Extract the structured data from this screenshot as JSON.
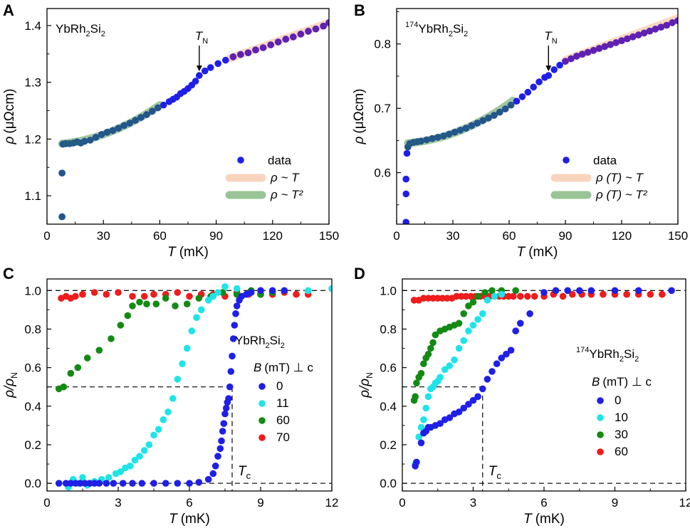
{
  "chart_data": [
    {
      "panel": "A",
      "type": "scatter",
      "sample": {
        "main": "YbRh",
        "sub1": "2",
        "mid": "Si",
        "sub2": "2"
      },
      "xlabel": {
        "sym": "T",
        "unit": "(mK)"
      },
      "ylabel": {
        "sym": "ρ",
        "unit": "(μΩcm)"
      },
      "xlim": [
        0,
        150
      ],
      "ylim": [
        1.05,
        1.43
      ],
      "xticks": [
        "0",
        "30",
        "60",
        "90",
        "120",
        "150"
      ],
      "yticks": [
        "1.1",
        "1.2",
        "1.3",
        "1.4"
      ],
      "annotation": {
        "sym": "T",
        "sub": "N",
        "x": 81,
        "y": 1.312
      },
      "series": [
        {
          "name": "data",
          "color": "#1f1fe6",
          "x": [
            8,
            8,
            8.5,
            10,
            12,
            14,
            16,
            18,
            20,
            23,
            26,
            29,
            32,
            35,
            38,
            41,
            44,
            47,
            50,
            53,
            56,
            59,
            62,
            65,
            67,
            69,
            71,
            73,
            75,
            77,
            79,
            81,
            84,
            87,
            91,
            95,
            99,
            103,
            107,
            111,
            115,
            119,
            123,
            127,
            131,
            135,
            139,
            143,
            147,
            150
          ],
          "y": [
            1.063,
            1.14,
            1.191,
            1.192,
            1.192,
            1.193,
            1.195,
            1.193,
            1.196,
            1.198,
            1.203,
            1.208,
            1.212,
            1.215,
            1.219,
            1.224,
            1.228,
            1.233,
            1.238,
            1.243,
            1.249,
            1.255,
            1.26,
            1.266,
            1.27,
            1.274,
            1.28,
            1.284,
            1.289,
            1.295,
            1.302,
            1.312,
            1.32,
            1.326,
            1.333,
            1.339,
            1.345,
            1.349,
            1.352,
            1.357,
            1.361,
            1.366,
            1.371,
            1.376,
            1.38,
            1.385,
            1.39,
            1.394,
            1.399,
            1.405
          ]
        },
        {
          "name": "ρ ~ T",
          "color": "#f9d4bd",
          "fit": "linear",
          "x": [
            97,
            150
          ],
          "y": [
            1.342,
            1.405
          ]
        },
        {
          "name": "ρ ~ T²",
          "color": "#98c496",
          "fit": "quadratic",
          "x": [
            8,
            60
          ],
          "y": [
            1.192,
            1.26
          ]
        }
      ],
      "legend": [
        "data",
        "ρ ~ T",
        "ρ ~ T²"
      ]
    },
    {
      "panel": "B",
      "type": "scatter",
      "sample": {
        "iso": "174",
        "main": "YbRh",
        "sub1": "2",
        "mid": "Si",
        "sub2": "2"
      },
      "xlabel": {
        "sym": "T",
        "unit": "(mK)"
      },
      "ylabel": {
        "sym": "ρ",
        "unit": "(μΩcm)"
      },
      "xlim": [
        0,
        150
      ],
      "ylim": [
        0.52,
        0.855
      ],
      "xticks": [
        "0",
        "30",
        "60",
        "90",
        "120",
        "150"
      ],
      "yticks": [
        "0.6",
        "0.7",
        "0.8"
      ],
      "annotation": {
        "sym": "T",
        "sub": "N",
        "x": 81,
        "y": 0.751
      },
      "series": [
        {
          "name": "data",
          "color": "#1f1fe6",
          "x": [
            5,
            5,
            5,
            5.5,
            6,
            7,
            9,
            11,
            13,
            16,
            19,
            22,
            25,
            28,
            31,
            34,
            37,
            40,
            43,
            46,
            49,
            52,
            55,
            58,
            61,
            64,
            67,
            70,
            73,
            76,
            79,
            81,
            84,
            87,
            90,
            93,
            96,
            99,
            102,
            105,
            108,
            111,
            114,
            117,
            120,
            123,
            126,
            129,
            132,
            135,
            138,
            141,
            144,
            147,
            150
          ],
          "y": [
            0.523,
            0.567,
            0.59,
            0.63,
            0.64,
            0.645,
            0.647,
            0.648,
            0.649,
            0.651,
            0.653,
            0.655,
            0.657,
            0.66,
            0.663,
            0.666,
            0.669,
            0.673,
            0.677,
            0.681,
            0.685,
            0.689,
            0.694,
            0.699,
            0.705,
            0.711,
            0.718,
            0.725,
            0.733,
            0.741,
            0.748,
            0.751,
            0.76,
            0.767,
            0.773,
            0.777,
            0.781,
            0.784,
            0.787,
            0.79,
            0.793,
            0.796,
            0.799,
            0.802,
            0.805,
            0.808,
            0.811,
            0.814,
            0.817,
            0.82,
            0.823,
            0.826,
            0.829,
            0.833,
            0.836
          ]
        },
        {
          "name": "ρ (T) ~ T",
          "color": "#f9d4bd",
          "fit": "linear",
          "x": [
            90,
            150
          ],
          "y": [
            0.775,
            0.84
          ]
        },
        {
          "name": "ρ (T) ~ T²",
          "color": "#98c496",
          "fit": "quadratic",
          "x": [
            6,
            62
          ],
          "y": [
            0.646,
            0.712
          ]
        }
      ],
      "legend": [
        "data",
        "ρ (T) ~ T",
        "ρ (T) ~ T²"
      ]
    },
    {
      "panel": "C",
      "type": "scatter",
      "sample": {
        "main": "YbRh",
        "sub1": "2",
        "mid": "Si",
        "sub2": "2"
      },
      "xlabel": {
        "sym": "T",
        "unit": "(mK)"
      },
      "ylabel": {
        "sym": "ρ/ρ",
        "sub": "N"
      },
      "xlim": [
        0,
        12
      ],
      "ylim": [
        -0.04,
        1.06
      ],
      "xticks": [
        "0",
        "3",
        "6",
        "9",
        "12"
      ],
      "yticks": [
        "0.0",
        "0.2",
        "0.4",
        "0.6",
        "0.8",
        "1.0"
      ],
      "tc": {
        "sym": "T",
        "sub": "c",
        "x": 7.8
      },
      "legend_title": {
        "sym": "B",
        "text": "(mT) ⊥ c"
      },
      "series": [
        {
          "name": "0",
          "color": "#1f1fe6",
          "x": [
            0.5,
            0.8,
            1.0,
            1.2,
            1.4,
            1.6,
            1.8,
            2.0,
            2.2,
            2.5,
            2.8,
            3.2,
            3.6,
            4.0,
            4.5,
            5.0,
            5.5,
            6.0,
            6.4,
            6.8,
            7.0,
            7.1,
            7.2,
            7.3,
            7.35,
            7.4,
            7.45,
            7.5,
            7.55,
            7.6,
            7.65,
            7.7,
            7.75,
            7.8,
            7.85,
            7.9,
            7.95,
            8.0,
            8.1,
            8.2,
            8.4,
            8.6,
            9.0,
            9.5,
            10.0
          ],
          "y": [
            0,
            0,
            0,
            0,
            0,
            0,
            0,
            0,
            0,
            0,
            0,
            0,
            0,
            0,
            0,
            0,
            0,
            0,
            0.005,
            0.02,
            0.05,
            0.09,
            0.14,
            0.18,
            0.22,
            0.27,
            0.31,
            0.36,
            0.39,
            0.42,
            0.44,
            0.5,
            0.58,
            0.66,
            0.75,
            0.82,
            0.88,
            0.92,
            0.95,
            0.97,
            0.98,
            0.99,
            1.0,
            1.0,
            1.0
          ]
        },
        {
          "name": "11",
          "color": "#1ee4e8",
          "x": [
            0.9,
            1.1,
            1.3,
            1.5,
            1.7,
            2.0,
            2.3,
            2.6,
            2.9,
            3.1,
            3.3,
            3.5,
            3.7,
            3.9,
            4.1,
            4.3,
            4.5,
            4.7,
            4.9,
            5.1,
            5.3,
            5.5,
            5.7,
            5.9,
            6.1,
            6.3,
            6.5,
            6.8,
            7.0,
            7.2,
            7.5,
            8.0,
            9.0,
            10.0,
            11.0,
            12.0
          ],
          "y": [
            -0.02,
            0.02,
            0.0,
            0.03,
            -0.01,
            0.01,
            0.02,
            0.03,
            0.05,
            0.06,
            0.08,
            0.09,
            0.12,
            0.14,
            0.17,
            0.2,
            0.25,
            0.28,
            0.33,
            0.37,
            0.44,
            0.54,
            0.62,
            0.7,
            0.79,
            0.86,
            0.9,
            0.95,
            0.97,
            0.99,
            1.02,
            1.01,
            1.0,
            1.0,
            1.0,
            1.01
          ]
        },
        {
          "name": "60",
          "color": "#138a13",
          "x": [
            0.5,
            0.7,
            1.0,
            1.3,
            1.7,
            2.2,
            2.7,
            3.1,
            3.4,
            3.6,
            3.9,
            4.2,
            4.6,
            5.0,
            5.4,
            5.9,
            6.4,
            6.9,
            7.4,
            8.0,
            8.6,
            9.0,
            9.5
          ],
          "y": [
            0.49,
            0.5,
            0.57,
            0.6,
            0.65,
            0.69,
            0.75,
            0.82,
            0.87,
            0.92,
            0.94,
            0.93,
            0.93,
            0.96,
            0.92,
            0.93,
            0.96,
            0.97,
            0.99,
            0.98,
            1.0,
            0.98,
            0.99
          ]
        },
        {
          "name": "70",
          "color": "#ee1c1c",
          "x": [
            0.6,
            0.8,
            1.0,
            1.2,
            1.5,
            2.0,
            2.5,
            3.0,
            3.6,
            4.1,
            4.5,
            5.0,
            5.5,
            6.0,
            6.5,
            7.0,
            7.5,
            8.0,
            8.5,
            9.0,
            9.5,
            10.0,
            10.5,
            11.0
          ],
          "y": [
            0.96,
            0.97,
            0.96,
            0.97,
            0.98,
            0.99,
            0.98,
            0.99,
            0.97,
            0.97,
            0.98,
            0.98,
            0.99,
            0.97,
            0.98,
            0.98,
            0.97,
            0.99,
            0.98,
            0.98,
            0.98,
            0.99,
            0.98,
            0.98
          ]
        }
      ]
    },
    {
      "panel": "D",
      "type": "scatter",
      "sample": {
        "iso": "174",
        "main": "YbRh",
        "sub1": "2",
        "mid": "Si",
        "sub2": "2"
      },
      "xlabel": {
        "sym": "T",
        "unit": "(mK)"
      },
      "ylabel": {
        "sym": "ρ/ρ",
        "sub": "N"
      },
      "xlim": [
        0,
        12
      ],
      "ylim": [
        -0.04,
        1.06
      ],
      "xticks": [
        "0",
        "3",
        "6",
        "9",
        "12"
      ],
      "yticks": [
        "0.0",
        "0.2",
        "0.4",
        "0.6",
        "0.8",
        "1.0"
      ],
      "tc": {
        "sym": "T",
        "sub": "c",
        "x": 3.4
      },
      "legend_title": {
        "sym": "B",
        "text": "(mT) ⊥ c"
      },
      "series": [
        {
          "name": "0",
          "color": "#1f1fe6",
          "x": [
            0.55,
            0.6,
            0.8,
            0.9,
            1.0,
            1.1,
            1.2,
            1.4,
            1.6,
            1.8,
            2.0,
            2.2,
            2.4,
            2.6,
            2.8,
            3.0,
            3.2,
            3.4,
            3.6,
            3.8,
            4.0,
            4.2,
            4.4,
            4.6,
            4.8,
            5.0,
            5.4,
            6.0,
            6.5,
            7.0,
            7.5,
            8.0,
            9.0,
            10.0,
            11.4
          ],
          "y": [
            0.09,
            0.11,
            0.21,
            0.26,
            0.27,
            0.29,
            0.29,
            0.3,
            0.31,
            0.33,
            0.34,
            0.36,
            0.37,
            0.39,
            0.41,
            0.43,
            0.45,
            0.49,
            0.54,
            0.58,
            0.62,
            0.65,
            0.67,
            0.69,
            0.79,
            0.83,
            0.88,
            0.99,
            1.0,
            1.0,
            1.0,
            1.0,
            1.0,
            1.0,
            1.0
          ]
        },
        {
          "name": "10",
          "color": "#1ee4e8",
          "x": [
            0.55,
            0.6,
            0.7,
            0.8,
            0.9,
            1.0,
            1.1,
            1.2,
            1.3,
            1.4,
            1.5,
            1.6,
            1.8,
            2.0,
            2.2,
            2.4,
            2.6,
            2.8,
            3.0,
            3.2,
            3.4,
            3.6,
            3.9,
            4.2
          ],
          "y": [
            0.1,
            0.11,
            0.24,
            0.29,
            0.33,
            0.39,
            0.45,
            0.49,
            0.5,
            0.52,
            0.53,
            0.55,
            0.59,
            0.61,
            0.64,
            0.7,
            0.74,
            0.79,
            0.82,
            0.85,
            0.88,
            0.95,
            0.97,
            0.98
          ]
        },
        {
          "name": "30",
          "color": "#138a13",
          "x": [
            0.5,
            0.55,
            0.6,
            0.7,
            0.8,
            0.9,
            1.0,
            1.1,
            1.2,
            1.3,
            1.4,
            1.6,
            1.8,
            2.0,
            2.2,
            2.4,
            2.6,
            2.8,
            3.0,
            3.2,
            3.5,
            3.8,
            4.2,
            4.8
          ],
          "y": [
            0.43,
            0.45,
            0.52,
            0.55,
            0.57,
            0.62,
            0.65,
            0.67,
            0.7,
            0.73,
            0.77,
            0.79,
            0.8,
            0.81,
            0.82,
            0.83,
            0.88,
            0.92,
            0.94,
            0.97,
            0.99,
            1.0,
            1.0,
            1.0
          ]
        },
        {
          "name": "60",
          "color": "#ee1c1c",
          "x": [
            0.5,
            0.7,
            0.9,
            1.1,
            1.3,
            1.5,
            1.7,
            1.9,
            2.1,
            2.3,
            2.5,
            2.7,
            2.9,
            3.1,
            3.3,
            3.5,
            3.7,
            3.9,
            4.1,
            4.3,
            4.5,
            4.7,
            5.0,
            5.3,
            5.6,
            6.0,
            6.4,
            6.8,
            7.2,
            7.6,
            8.0,
            8.5,
            9.0,
            9.5,
            10.0,
            10.5,
            11.0
          ],
          "y": [
            0.95,
            0.95,
            0.96,
            0.96,
            0.96,
            0.96,
            0.96,
            0.96,
            0.96,
            0.97,
            0.97,
            0.97,
            0.97,
            0.97,
            0.97,
            0.97,
            0.97,
            0.97,
            0.97,
            0.97,
            0.97,
            0.97,
            0.97,
            0.97,
            0.97,
            0.97,
            0.98,
            0.97,
            0.98,
            0.98,
            0.98,
            0.98,
            0.98,
            0.98,
            0.98,
            0.98,
            0.98
          ]
        }
      ]
    }
  ]
}
